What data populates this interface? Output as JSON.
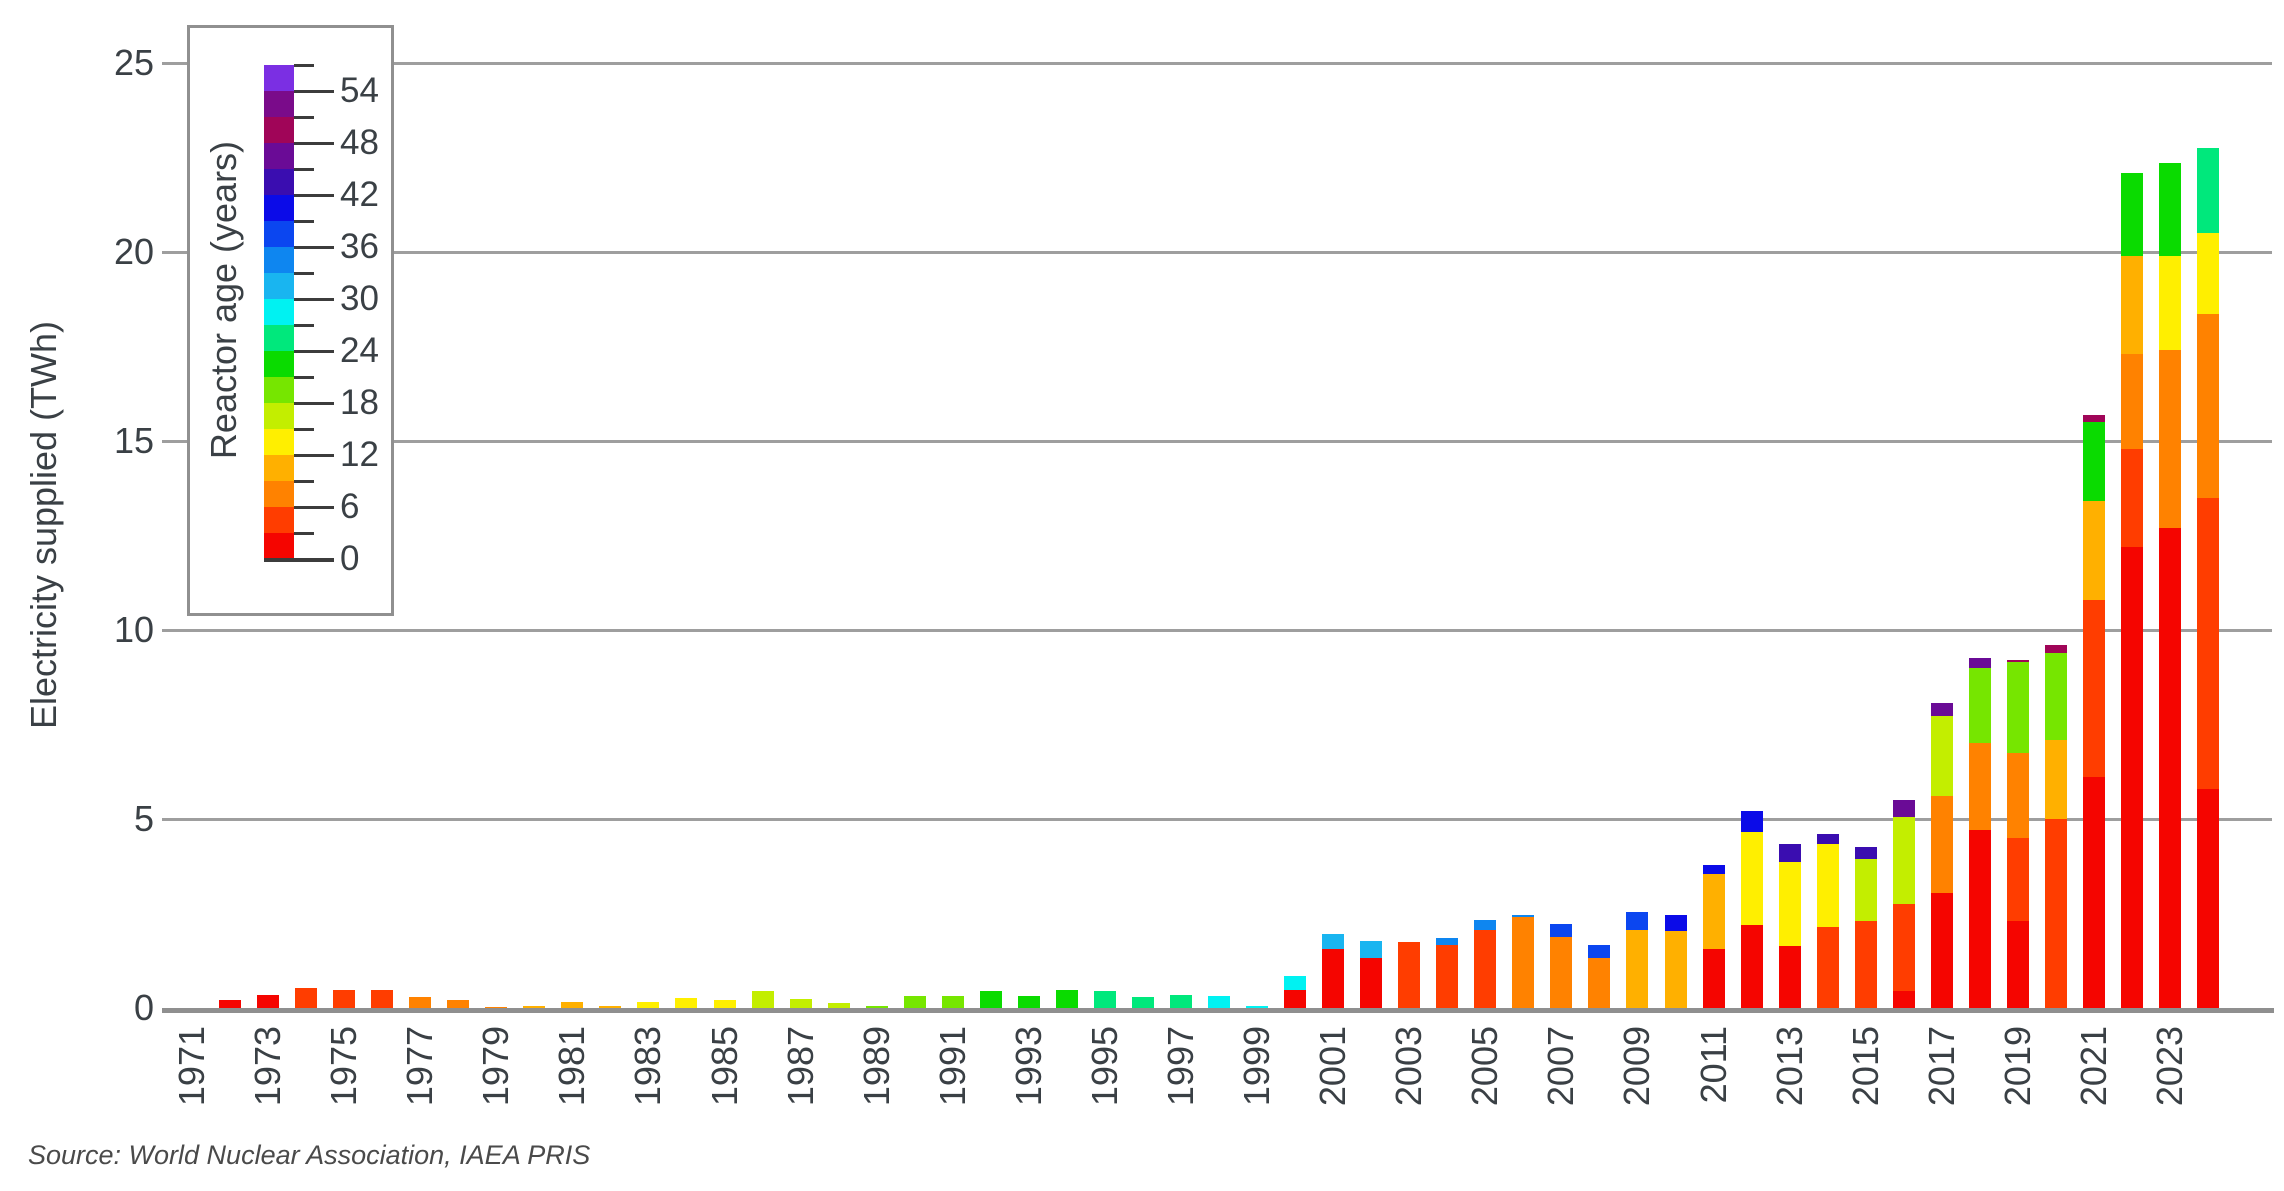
{
  "y_axis": {
    "title": "Electricity supplied (TWh)",
    "ticks": [
      0,
      5,
      10,
      15,
      20,
      25
    ],
    "max": 25
  },
  "x_axis": {
    "tick_years": [
      1971,
      1973,
      1975,
      1977,
      1979,
      1981,
      1983,
      1985,
      1987,
      1989,
      1991,
      1993,
      1995,
      1997,
      1999,
      2001,
      2003,
      2005,
      2007,
      2009,
      2011,
      2013,
      2015,
      2017,
      2019,
      2021,
      2023
    ]
  },
  "source_note": "Source: World Nuclear Association, IAEA PRIS",
  "legend": {
    "title": "Reactor age (years)",
    "major_tick_values": [
      0,
      6,
      12,
      18,
      24,
      30,
      36,
      42,
      48,
      54
    ],
    "bin_size_years": 3,
    "bins_bottom_to_top": [
      {
        "age": "0-3",
        "color": "#F50500"
      },
      {
        "age": "3-6",
        "color": "#FF3D00"
      },
      {
        "age": "6-9",
        "color": "#FF8200"
      },
      {
        "age": "9-12",
        "color": "#FFB000"
      },
      {
        "age": "12-15",
        "color": "#FFEF00"
      },
      {
        "age": "15-18",
        "color": "#C3EE00"
      },
      {
        "age": "18-21",
        "color": "#76E600"
      },
      {
        "age": "21-24",
        "color": "#0ADB00"
      },
      {
        "age": "24-27",
        "color": "#00E87C"
      },
      {
        "age": "27-30",
        "color": "#00F2F2"
      },
      {
        "age": "30-33",
        "color": "#19B5F0"
      },
      {
        "age": "33-36",
        "color": "#0E86F0"
      },
      {
        "age": "36-39",
        "color": "#0B46F0"
      },
      {
        "age": "39-42",
        "color": "#0B0BE8"
      },
      {
        "age": "42-45",
        "color": "#3A0DB0"
      },
      {
        "age": "45-48",
        "color": "#6A0B96"
      },
      {
        "age": "48-51",
        "color": "#A00558"
      },
      {
        "age": "51-54",
        "color": "#7A0B8A"
      },
      {
        "age": "54-57",
        "color": "#7B2FE3"
      }
    ]
  },
  "chart_data": {
    "type": "bar",
    "stacked": true,
    "unit": "TWh",
    "ylabel": "Electricity supplied (TWh)",
    "ylim": [
      0,
      25
    ],
    "grid": true,
    "legend_position": "upper-left",
    "years": [
      {
        "year": 1972,
        "segments": [
          {
            "age": "0-3",
            "twh": 0.2
          }
        ]
      },
      {
        "year": 1973,
        "segments": [
          {
            "age": "0-3",
            "twh": 0.35
          }
        ]
      },
      {
        "year": 1974,
        "segments": [
          {
            "age": "3-6",
            "twh": 0.53
          }
        ]
      },
      {
        "year": 1975,
        "segments": [
          {
            "age": "3-6",
            "twh": 0.48
          }
        ]
      },
      {
        "year": 1976,
        "segments": [
          {
            "age": "3-6",
            "twh": 0.48
          }
        ]
      },
      {
        "year": 1977,
        "segments": [
          {
            "age": "6-9",
            "twh": 0.3
          }
        ]
      },
      {
        "year": 1978,
        "segments": [
          {
            "age": "6-9",
            "twh": 0.21
          }
        ]
      },
      {
        "year": 1979,
        "segments": [
          {
            "age": "6-9",
            "twh": 0.03
          }
        ]
      },
      {
        "year": 1980,
        "segments": [
          {
            "age": "9-12",
            "twh": 0.05
          }
        ]
      },
      {
        "year": 1981,
        "segments": [
          {
            "age": "9-12",
            "twh": 0.15
          }
        ]
      },
      {
        "year": 1982,
        "segments": [
          {
            "age": "9-12",
            "twh": 0.05
          }
        ]
      },
      {
        "year": 1983,
        "segments": [
          {
            "age": "12-15",
            "twh": 0.16
          }
        ]
      },
      {
        "year": 1984,
        "segments": [
          {
            "age": "12-15",
            "twh": 0.26
          }
        ]
      },
      {
        "year": 1985,
        "segments": [
          {
            "age": "12-15",
            "twh": 0.21
          }
        ]
      },
      {
        "year": 1986,
        "segments": [
          {
            "age": "15-18",
            "twh": 0.45
          }
        ]
      },
      {
        "year": 1987,
        "segments": [
          {
            "age": "15-18",
            "twh": 0.24
          }
        ]
      },
      {
        "year": 1988,
        "segments": [
          {
            "age": "15-18",
            "twh": 0.13
          }
        ]
      },
      {
        "year": 1989,
        "segments": [
          {
            "age": "18-21",
            "twh": 0.04
          }
        ]
      },
      {
        "year": 1990,
        "segments": [
          {
            "age": "18-21",
            "twh": 0.33
          }
        ]
      },
      {
        "year": 1991,
        "segments": [
          {
            "age": "18-21",
            "twh": 0.33
          }
        ]
      },
      {
        "year": 1992,
        "segments": [
          {
            "age": "21-24",
            "twh": 0.46
          }
        ]
      },
      {
        "year": 1993,
        "segments": [
          {
            "age": "21-24",
            "twh": 0.31
          }
        ]
      },
      {
        "year": 1994,
        "segments": [
          {
            "age": "21-24",
            "twh": 0.48
          }
        ]
      },
      {
        "year": 1995,
        "segments": [
          {
            "age": "24-27",
            "twh": 0.45
          }
        ]
      },
      {
        "year": 1996,
        "segments": [
          {
            "age": "24-27",
            "twh": 0.3
          }
        ]
      },
      {
        "year": 1997,
        "segments": [
          {
            "age": "24-27",
            "twh": 0.35
          }
        ]
      },
      {
        "year": 1998,
        "segments": [
          {
            "age": "27-30",
            "twh": 0.33
          }
        ]
      },
      {
        "year": 1999,
        "segments": [
          {
            "age": "27-30",
            "twh": 0.04
          }
        ]
      },
      {
        "year": 2000,
        "segments": [
          {
            "age": "0-3",
            "twh": 0.47
          },
          {
            "age": "27-30",
            "twh": 0.38
          }
        ]
      },
      {
        "year": 2001,
        "segments": [
          {
            "age": "0-3",
            "twh": 1.55
          },
          {
            "age": "30-33",
            "twh": 0.41
          }
        ]
      },
      {
        "year": 2002,
        "segments": [
          {
            "age": "0-3",
            "twh": 1.32
          },
          {
            "age": "30-33",
            "twh": 0.45
          }
        ]
      },
      {
        "year": 2003,
        "segments": [
          {
            "age": "3-6",
            "twh": 1.75
          }
        ]
      },
      {
        "year": 2004,
        "segments": [
          {
            "age": "3-6",
            "twh": 1.66
          },
          {
            "age": "33-36",
            "twh": 0.18
          }
        ]
      },
      {
        "year": 2005,
        "segments": [
          {
            "age": "3-6",
            "twh": 2.07
          },
          {
            "age": "33-36",
            "twh": 0.26
          }
        ]
      },
      {
        "year": 2006,
        "segments": [
          {
            "age": "6-9",
            "twh": 2.42
          },
          {
            "age": "33-36",
            "twh": 0.04
          }
        ]
      },
      {
        "year": 2007,
        "segments": [
          {
            "age": "6-9",
            "twh": 1.89
          },
          {
            "age": "36-39",
            "twh": 0.33
          }
        ]
      },
      {
        "year": 2008,
        "segments": [
          {
            "age": "6-9",
            "twh": 1.33
          },
          {
            "age": "36-39",
            "twh": 0.33
          }
        ]
      },
      {
        "year": 2009,
        "segments": [
          {
            "age": "9-12",
            "twh": 2.07
          },
          {
            "age": "36-39",
            "twh": 0.46
          }
        ]
      },
      {
        "year": 2010,
        "segments": [
          {
            "age": "9-12",
            "twh": 2.04
          },
          {
            "age": "39-42",
            "twh": 0.43
          }
        ]
      },
      {
        "year": 2011,
        "segments": [
          {
            "age": "0-3",
            "twh": 1.55
          },
          {
            "age": "9-12",
            "twh": 2.0
          },
          {
            "age": "39-42",
            "twh": 0.23
          }
        ]
      },
      {
        "year": 2012,
        "segments": [
          {
            "age": "0-3",
            "twh": 2.2
          },
          {
            "age": "12-15",
            "twh": 2.45
          },
          {
            "age": "39-42",
            "twh": 0.55
          }
        ]
      },
      {
        "year": 2013,
        "segments": [
          {
            "age": "0-3",
            "twh": 1.65
          },
          {
            "age": "12-15",
            "twh": 2.2
          },
          {
            "age": "42-45",
            "twh": 0.5
          }
        ]
      },
      {
        "year": 2014,
        "segments": [
          {
            "age": "3-6",
            "twh": 2.15
          },
          {
            "age": "12-15",
            "twh": 2.2
          },
          {
            "age": "42-45",
            "twh": 0.25
          }
        ]
      },
      {
        "year": 2015,
        "segments": [
          {
            "age": "3-6",
            "twh": 2.3
          },
          {
            "age": "15-18",
            "twh": 1.65
          },
          {
            "age": "42-45",
            "twh": 0.3
          }
        ]
      },
      {
        "year": 2016,
        "segments": [
          {
            "age": "0-3",
            "twh": 0.45
          },
          {
            "age": "3-6",
            "twh": 2.3
          },
          {
            "age": "15-18",
            "twh": 2.3
          },
          {
            "age": "45-48",
            "twh": 0.45
          }
        ]
      },
      {
        "year": 2017,
        "segments": [
          {
            "age": "0-3",
            "twh": 3.05
          },
          {
            "age": "6-9",
            "twh": 2.57
          },
          {
            "age": "15-18",
            "twh": 2.1
          },
          {
            "age": "45-48",
            "twh": 0.35
          }
        ]
      },
      {
        "year": 2018,
        "segments": [
          {
            "age": "0-3",
            "twh": 4.7
          },
          {
            "age": "6-9",
            "twh": 2.3
          },
          {
            "age": "18-21",
            "twh": 2.0
          },
          {
            "age": "45-48",
            "twh": 0.27
          }
        ]
      },
      {
        "year": 2019,
        "segments": [
          {
            "age": "0-3",
            "twh": 2.3
          },
          {
            "age": "3-6",
            "twh": 2.2
          },
          {
            "age": "6-9",
            "twh": 2.25
          },
          {
            "age": "18-21",
            "twh": 2.4
          },
          {
            "age": "48-51",
            "twh": 0.06
          }
        ]
      },
      {
        "year": 2020,
        "segments": [
          {
            "age": "3-6",
            "twh": 5.0
          },
          {
            "age": "9-12",
            "twh": 2.1
          },
          {
            "age": "18-21",
            "twh": 2.3
          },
          {
            "age": "48-51",
            "twh": 0.2
          }
        ]
      },
      {
        "year": 2021,
        "segments": [
          {
            "age": "0-3",
            "twh": 6.1
          },
          {
            "age": "3-6",
            "twh": 4.7
          },
          {
            "age": "9-12",
            "twh": 2.6
          },
          {
            "age": "21-24",
            "twh": 2.1
          },
          {
            "age": "48-51",
            "twh": 0.2
          }
        ]
      },
      {
        "year": 2022,
        "segments": [
          {
            "age": "0-3",
            "twh": 12.2
          },
          {
            "age": "3-6",
            "twh": 2.6
          },
          {
            "age": "6-9",
            "twh": 2.5
          },
          {
            "age": "9-12",
            "twh": 2.6
          },
          {
            "age": "21-24",
            "twh": 2.2
          }
        ]
      },
      {
        "year": 2023,
        "segments": [
          {
            "age": "0-3",
            "twh": 12.7
          },
          {
            "age": "6-9",
            "twh": 4.7
          },
          {
            "age": "12-15",
            "twh": 2.5
          },
          {
            "age": "21-24",
            "twh": 2.45
          }
        ]
      },
      {
        "year": 2024,
        "segments": [
          {
            "age": "0-3",
            "twh": 5.8
          },
          {
            "age": "3-6",
            "twh": 7.7
          },
          {
            "age": "6-9",
            "twh": 4.85
          },
          {
            "age": "12-15",
            "twh": 2.15
          },
          {
            "age": "24-27",
            "twh": 2.25
          }
        ]
      }
    ]
  }
}
